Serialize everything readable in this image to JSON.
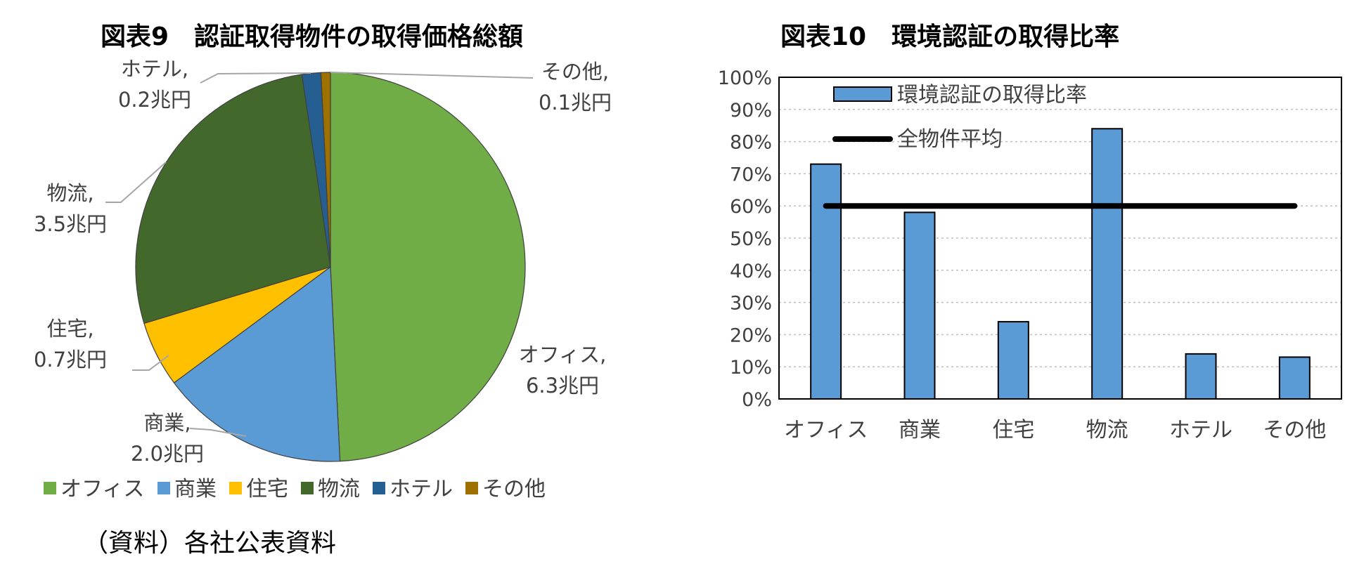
{
  "chart_data": [
    {
      "type": "pie",
      "title": "図表9　認証取得物件の取得価格総額",
      "categories": [
        "オフィス",
        "商業",
        "住宅",
        "物流",
        "ホテル",
        "その他"
      ],
      "values": [
        6.3,
        2.0,
        0.7,
        3.5,
        0.2,
        0.1
      ],
      "unit": "兆円",
      "data_labels": [
        {
          "name": "オフィス,",
          "value": "6.3兆円"
        },
        {
          "name": "商業,",
          "value": "2.0兆円"
        },
        {
          "name": "住宅,",
          "value": "0.7兆円"
        },
        {
          "name": "物流,",
          "value": "3.5兆円"
        },
        {
          "name": "ホテル,",
          "value": "0.2兆円"
        },
        {
          "name": "その他,",
          "value": "0.1兆円"
        }
      ],
      "colors": [
        "#70ad47",
        "#5b9bd5",
        "#ffc000",
        "#43682b",
        "#255e91",
        "#9e7000"
      ],
      "legend": {
        "position": "bottom"
      },
      "source": "（資料）各社公表資料"
    },
    {
      "type": "bar",
      "title": "図表10　環境認証の取得比率",
      "categories": [
        "オフィス",
        "商業",
        "住宅",
        "物流",
        "ホテル",
        "その他"
      ],
      "series": [
        {
          "name": "環境認証の取得比率",
          "type": "bar",
          "values": [
            73,
            58,
            24,
            84,
            14,
            13
          ],
          "color": "#5b9bd5"
        },
        {
          "name": "全物件平均",
          "type": "line",
          "values": [
            60,
            60,
            60,
            60,
            60,
            60
          ],
          "color": "#000000"
        }
      ],
      "ylim": [
        0,
        100
      ],
      "yticks": [
        "0%",
        "10%",
        "20%",
        "30%",
        "40%",
        "50%",
        "60%",
        "70%",
        "80%",
        "90%",
        "100%"
      ],
      "grid": true,
      "legend": {
        "position": "top-left"
      }
    }
  ]
}
